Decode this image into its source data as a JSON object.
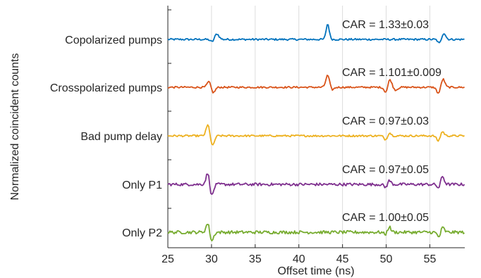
{
  "chart_data": {
    "type": "line",
    "xlabel": "Offset time (ns)",
    "ylabel": "Normalized coincident counts",
    "xlim": [
      25,
      59
    ],
    "xticks": [
      25,
      30,
      35,
      40,
      45,
      50,
      55
    ],
    "grid": true,
    "series": [
      {
        "name": "Copolarized pumps",
        "car": "CAR = 1.33±0.03",
        "color": "#0072BD",
        "noise": 1.3,
        "peaks": [
          [
            30.6,
            8,
            0.35
          ],
          [
            43.3,
            22,
            0.25
          ],
          [
            56.6,
            9,
            0.3
          ]
        ],
        "dips": [
          [
            30.1,
            -4,
            0.3
          ],
          [
            56.1,
            -6,
            0.25
          ]
        ]
      },
      {
        "name": "Crosspolarized pumps",
        "car": "CAR = 1.101±0.009",
        "color": "#D95319",
        "noise": 1.2,
        "peaks": [
          [
            29.7,
            8,
            0.3
          ],
          [
            43.3,
            17,
            0.3
          ],
          [
            50.4,
            12,
            0.3
          ],
          [
            56.5,
            12,
            0.3
          ]
        ],
        "dips": [
          [
            30.2,
            -8,
            0.3
          ],
          [
            43.8,
            -4,
            0.3
          ],
          [
            50.0,
            -8,
            0.3
          ],
          [
            51.1,
            -4,
            0.3
          ],
          [
            56.0,
            -9,
            0.3
          ]
        ]
      },
      {
        "name": "Bad pump delay",
        "car": "CAR = 0.97±0.03",
        "color": "#EDB120",
        "noise": 1.3,
        "peaks": [
          [
            29.6,
            16,
            0.3
          ],
          [
            50.3,
            6,
            0.3
          ],
          [
            56.4,
            7,
            0.3
          ]
        ],
        "dips": [
          [
            30.1,
            -15,
            0.3
          ],
          [
            50.0,
            -7,
            0.3
          ],
          [
            56.0,
            -8,
            0.3
          ]
        ]
      },
      {
        "name": "Only P1",
        "car": "CAR = 0.97±0.05",
        "color": "#7E2F8E",
        "noise": 2.0,
        "peaks": [
          [
            29.6,
            18,
            0.3
          ],
          [
            50.3,
            7,
            0.3
          ],
          [
            56.4,
            14,
            0.3
          ]
        ],
        "dips": [
          [
            30.0,
            -18,
            0.3
          ],
          [
            50.0,
            -6,
            0.3
          ],
          [
            56.1,
            -8,
            0.3
          ]
        ]
      },
      {
        "name": "Only P2",
        "car": "CAR = 1.00±0.05",
        "color": "#77AC30",
        "noise": 2.2,
        "peaks": [
          [
            29.6,
            14,
            0.3
          ],
          [
            50.3,
            9,
            0.3
          ],
          [
            56.4,
            9,
            0.3
          ]
        ],
        "dips": [
          [
            30.0,
            -14,
            0.3
          ],
          [
            50.0,
            -5,
            0.3
          ],
          [
            56.1,
            -9,
            0.3
          ]
        ]
      }
    ]
  }
}
